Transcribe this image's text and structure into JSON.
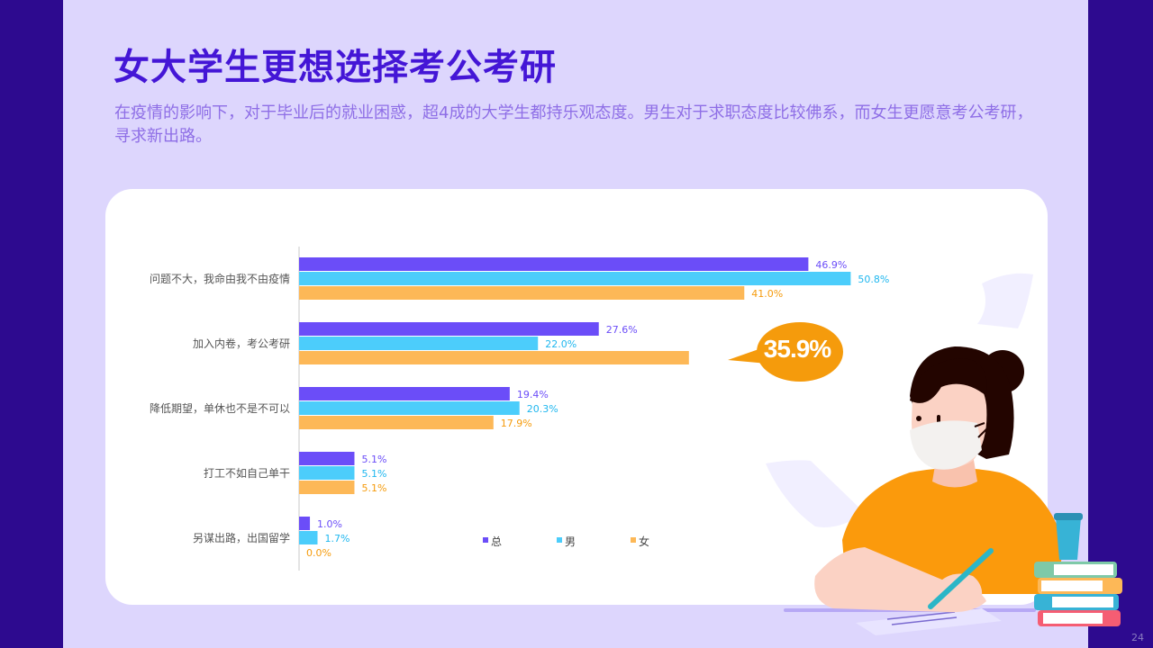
{
  "title": "女大学生更想选择考公考研",
  "subtitle": "在疫情的影响下，对于毕业后的就业困惑，超4成的大学生都持乐观态度。男生对于求职态度比较佛系，而女生更愿意考公考研，寻求新出路。",
  "page_number": "24",
  "callout": {
    "text": "35.9%",
    "color": "#f59b0c"
  },
  "colors": {
    "background": "#2d0a8f",
    "slide": "#ddd6fd",
    "title": "#4416d6",
    "subtitle": "#8e6ee6"
  },
  "chart_data": {
    "type": "bar",
    "orientation": "horizontal",
    "categories": [
      "问题不大，我命由我不由疫情",
      "加入内卷，考公考研",
      "降低期望，单休也不是不可以",
      "打工不如自己单干",
      "另谋出路，出国留学"
    ],
    "series": [
      {
        "name": "总",
        "color": "#6b4df8",
        "values": [
          46.9,
          27.6,
          19.4,
          5.1,
          1.0
        ],
        "labels": [
          "46.9%",
          "27.6%",
          "19.4%",
          "5.1%",
          "1.0%"
        ]
      },
      {
        "name": "男",
        "color": "#4ccdfb",
        "values": [
          50.8,
          22.0,
          20.3,
          5.1,
          1.7
        ],
        "labels": [
          "50.8%",
          "22.0%",
          "20.3%",
          "5.1%",
          "1.7%"
        ]
      },
      {
        "name": "女",
        "color": "#fdb857",
        "values": [
          41.0,
          35.9,
          17.9,
          5.1,
          0.0
        ],
        "labels": [
          "41.0%",
          "",
          "17.9%",
          "5.1%",
          "0.0%"
        ]
      }
    ],
    "label_colors": [
      "#6b4df8",
      "#1fb7ef",
      "#f59b0c"
    ],
    "xlim": [
      0,
      54
    ],
    "legend_position": "bottom",
    "grid": false
  }
}
